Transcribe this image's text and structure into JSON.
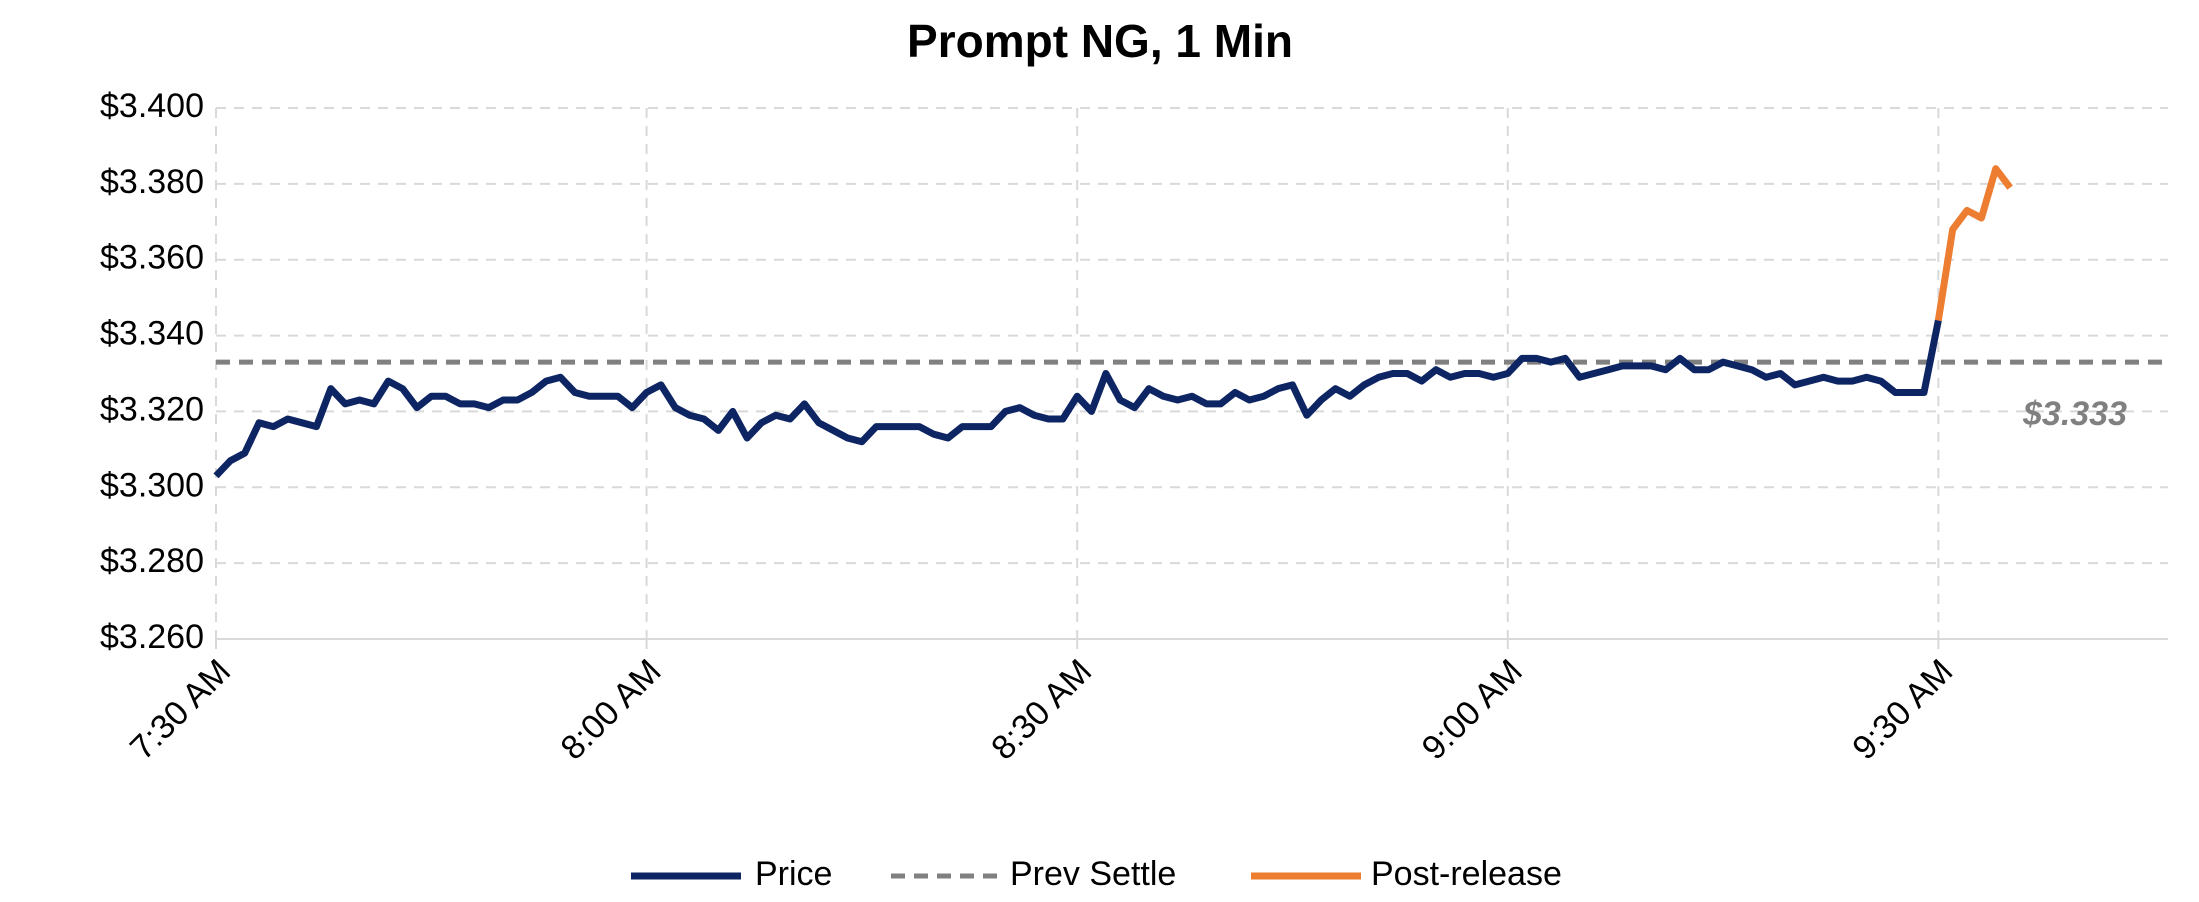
{
  "chart_data": {
    "type": "line",
    "title": "Prompt NG, 1 Min",
    "x": [
      450,
      451,
      452,
      453,
      454,
      455,
      456,
      457,
      458,
      459,
      460,
      461,
      462,
      463,
      464,
      465,
      466,
      467,
      468,
      469,
      470,
      471,
      472,
      473,
      474,
      475,
      476,
      477,
      478,
      479,
      480,
      481,
      482,
      483,
      484,
      485,
      486,
      487,
      488,
      489,
      490,
      491,
      492,
      493,
      494,
      495,
      496,
      497,
      498,
      499,
      500,
      501,
      502,
      503,
      504,
      505,
      506,
      507,
      508,
      509,
      510,
      511,
      512,
      513,
      514,
      515,
      516,
      517,
      518,
      519,
      520,
      521,
      522,
      523,
      524,
      525,
      526,
      527,
      528,
      529,
      530,
      531,
      532,
      533,
      534,
      535,
      536,
      537,
      538,
      539,
      540,
      541,
      542,
      543,
      544,
      545,
      546,
      547,
      548,
      549,
      550,
      551,
      552,
      553,
      554,
      555,
      556,
      557,
      558,
      559,
      560,
      561,
      562,
      563,
      564,
      565,
      566,
      567,
      568,
      569,
      570,
      571,
      572,
      573,
      574,
      575
    ],
    "series": [
      {
        "name": "Price",
        "color": "#0d2563",
        "values": [
          3.303,
          3.307,
          3.309,
          3.317,
          3.316,
          3.318,
          3.317,
          3.316,
          3.326,
          3.322,
          3.323,
          3.322,
          3.328,
          3.326,
          3.321,
          3.324,
          3.324,
          3.322,
          3.322,
          3.321,
          3.323,
          3.323,
          3.325,
          3.328,
          3.329,
          3.325,
          3.324,
          3.324,
          3.324,
          3.321,
          3.325,
          3.327,
          3.321,
          3.319,
          3.318,
          3.315,
          3.32,
          3.313,
          3.317,
          3.319,
          3.318,
          3.322,
          3.317,
          3.315,
          3.313,
          3.312,
          3.316,
          3.316,
          3.316,
          3.316,
          3.314,
          3.313,
          3.316,
          3.316,
          3.316,
          3.32,
          3.321,
          3.319,
          3.318,
          3.318,
          3.324,
          3.32,
          3.33,
          3.323,
          3.321,
          3.326,
          3.324,
          3.323,
          3.324,
          3.322,
          3.322,
          3.325,
          3.323,
          3.324,
          3.326,
          3.327,
          3.319,
          3.323,
          3.326,
          3.324,
          3.327,
          3.329,
          3.33,
          3.33,
          3.328,
          3.331,
          3.329,
          3.33,
          3.33,
          3.329,
          3.33,
          3.334,
          3.334,
          3.333,
          3.334,
          3.329,
          3.33,
          3.331,
          3.332,
          3.332,
          3.332,
          3.331,
          3.334,
          3.331,
          3.331,
          3.333,
          3.332,
          3.331,
          3.329,
          3.33,
          3.327,
          3.328,
          3.329,
          3.328,
          3.328,
          3.329,
          3.328,
          3.325,
          3.325,
          3.325,
          3.344,
          null,
          null,
          null,
          null,
          null
        ]
      },
      {
        "name": "Post-release",
        "color": "#ed7d31",
        "values": [
          null,
          null,
          null,
          null,
          null,
          null,
          null,
          null,
          null,
          null,
          null,
          null,
          null,
          null,
          null,
          null,
          null,
          null,
          null,
          null,
          null,
          null,
          null,
          null,
          null,
          null,
          null,
          null,
          null,
          null,
          null,
          null,
          null,
          null,
          null,
          null,
          null,
          null,
          null,
          null,
          null,
          null,
          null,
          null,
          null,
          null,
          null,
          null,
          null,
          null,
          null,
          null,
          null,
          null,
          null,
          null,
          null,
          null,
          null,
          null,
          null,
          null,
          null,
          null,
          null,
          null,
          null,
          null,
          null,
          null,
          null,
          null,
          null,
          null,
          null,
          null,
          null,
          null,
          null,
          null,
          null,
          null,
          null,
          null,
          null,
          null,
          null,
          null,
          null,
          null,
          null,
          null,
          null,
          null,
          null,
          null,
          null,
          null,
          null,
          null,
          null,
          null,
          null,
          null,
          null,
          null,
          null,
          null,
          null,
          null,
          null,
          null,
          null,
          null,
          null,
          null,
          null,
          null,
          null,
          null,
          3.344,
          3.368,
          3.373,
          3.371,
          3.384,
          3.379
        ]
      }
    ],
    "reference_line": {
      "name": "Prev Settle",
      "value": 3.333,
      "label": "$3.333",
      "color": "#808080"
    },
    "xlim": [
      450,
      586
    ],
    "xticks": [
      {
        "value": 450,
        "label": "7:30 AM"
      },
      {
        "value": 480,
        "label": "8:00 AM"
      },
      {
        "value": 510,
        "label": "8:30 AM"
      },
      {
        "value": 540,
        "label": "9:00 AM"
      },
      {
        "value": 570,
        "label": "9:30 AM"
      }
    ],
    "ylim": [
      3.26,
      3.4
    ],
    "yticks": [
      {
        "value": 3.26,
        "label": "$3.260"
      },
      {
        "value": 3.28,
        "label": "$3.280"
      },
      {
        "value": 3.3,
        "label": "$3.300"
      },
      {
        "value": 3.32,
        "label": "$3.320"
      },
      {
        "value": 3.34,
        "label": "$3.340"
      },
      {
        "value": 3.36,
        "label": "$3.360"
      },
      {
        "value": 3.38,
        "label": "$3.380"
      },
      {
        "value": 3.4,
        "label": "$3.400"
      }
    ],
    "grid": true
  }
}
